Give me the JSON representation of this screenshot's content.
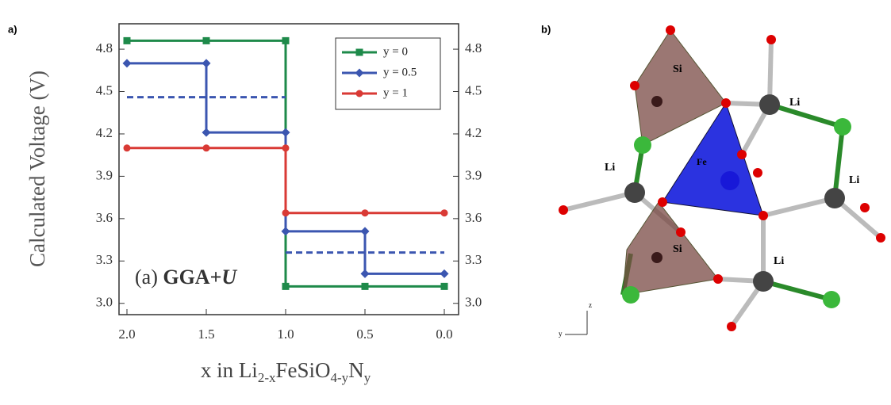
{
  "chart_data": {
    "type": "line",
    "panel_label": "a)",
    "ylabel": "Calculated Voltage (V)",
    "xlabel_parts": [
      "x in Li",
      "2-x",
      "FeSiO",
      "4-y",
      "N",
      "y"
    ],
    "annotation": [
      "(a) ",
      "GGA+",
      "U"
    ],
    "xlim": [
      2.05,
      -0.09
    ],
    "ylim": [
      2.92,
      4.98
    ],
    "xticks": [
      {
        "value": 2.0,
        "label": "2.0"
      },
      1.5,
      {
        "value": 1.0,
        "label": "1.0"
      },
      0.5,
      {
        "value": 0.0,
        "label": "0.0"
      }
    ],
    "yticks": [
      {
        "value": 3.0,
        "label": "3.0"
      },
      3.3,
      3.6,
      3.9,
      4.2,
      4.5,
      4.8
    ],
    "legend": "upper right",
    "grid": false,
    "series": [
      {
        "name": "y = 0",
        "color": "#1e8a4a",
        "marker": "square",
        "x": [
          2.0,
          1.5,
          1.0,
          1.0,
          0.5,
          0.0
        ],
        "values": [
          4.86,
          4.86,
          4.86,
          3.12,
          3.12,
          3.12
        ]
      },
      {
        "name": "y = 0.5",
        "color": "#3b56b0",
        "marker": "diamond",
        "x": [
          2.0,
          1.5,
          1.5,
          1.0,
          1.0,
          0.5,
          0.5,
          0.0
        ],
        "values": [
          4.7,
          4.7,
          4.21,
          4.21,
          3.51,
          3.51,
          3.21,
          3.21
        ]
      },
      {
        "name": "y = 1",
        "color": "#d93a35",
        "marker": "circle",
        "x": [
          2.0,
          1.5,
          1.0,
          1.0,
          0.5,
          0.0
        ],
        "values": [
          4.1,
          4.1,
          4.1,
          3.64,
          3.64,
          3.64
        ]
      },
      {
        "color": "#3b56b0",
        "linestyle": "dashed",
        "x": [
          2.0,
          1.0,
          1.0,
          1.0,
          0.0
        ],
        "values": [
          4.46,
          4.46,
          null,
          3.36,
          3.36
        ]
      }
    ]
  },
  "diagram": {
    "panel_label": "b)",
    "atoms": [
      "Si",
      "Li",
      "Li",
      "Fe",
      "Li",
      "Si",
      "Li"
    ],
    "axes": [
      "y",
      "z"
    ]
  }
}
